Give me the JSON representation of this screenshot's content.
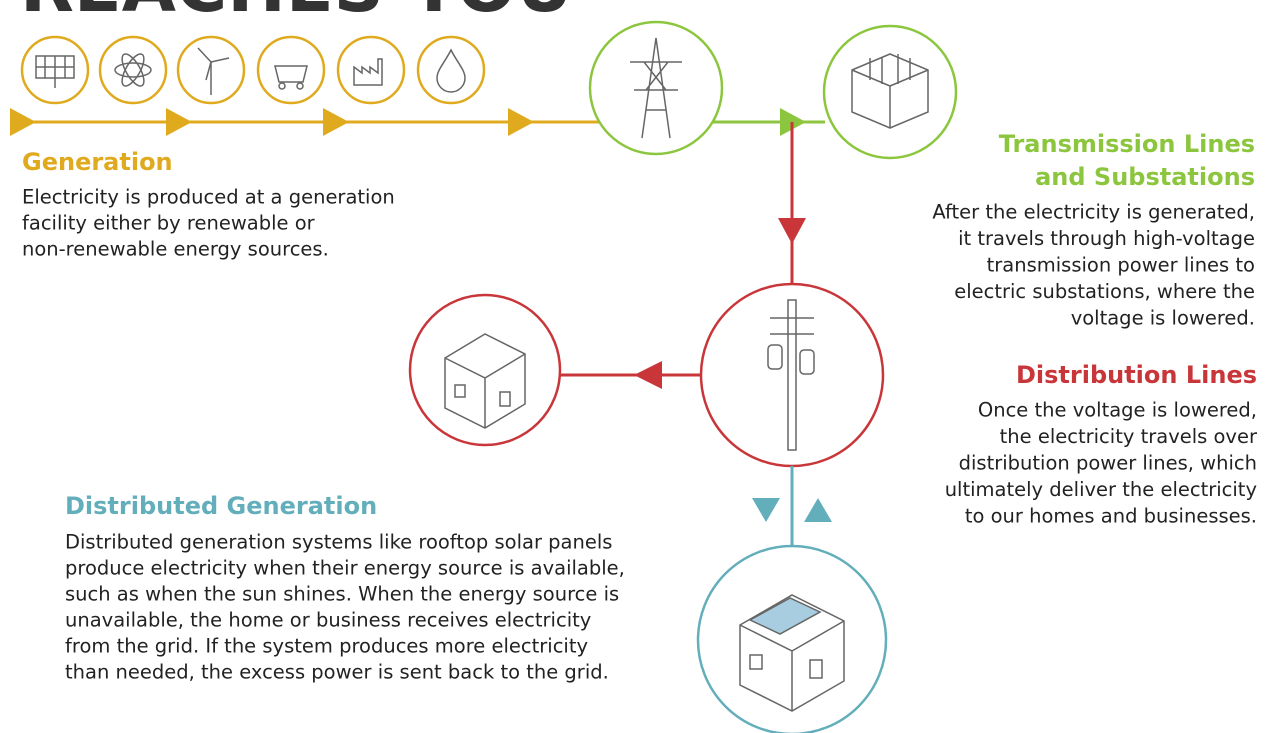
{
  "header": {
    "title": "REACHES YOU"
  },
  "generation": {
    "heading": "Generation",
    "body": [
      "Electricity is produced at a generation",
      "facility either by renewable or",
      "non-renewable energy sources."
    ]
  },
  "transmission": {
    "heading": [
      "Transmission Lines",
      "and Substations"
    ],
    "body": [
      "After the electricity is generated,",
      "it travels through high-voltage",
      "transmission power lines to",
      "electric substations, where the",
      "voltage is lowered."
    ]
  },
  "distribution": {
    "heading": "Distribution Lines",
    "body": [
      "Once the voltage is lowered,",
      "the electricity travels over",
      "distribution power lines, which",
      "ultimately deliver the electricity",
      "to our homes and businesses."
    ]
  },
  "distributed_generation": {
    "heading": "Distributed Generation",
    "body": [
      "Distributed generation systems like rooftop solar panels",
      "produce electricity when their energy source is available,",
      "such as when the sun shines. When the energy source is",
      "unavailable, the home or business receives electricity",
      "from the grid. If the system produces more electricity",
      "than needed, the excess power is sent back to the grid."
    ]
  }
}
